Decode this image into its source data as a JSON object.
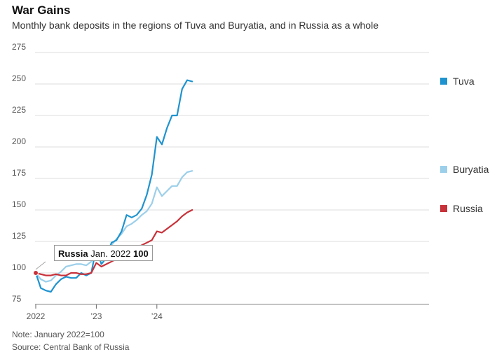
{
  "header": {
    "title": "War Gains",
    "subtitle": "Monthly bank deposits in the regions of Tuva and Buryatia, and in Russia as a whole"
  },
  "footer": {
    "note": "Note: January 2022=100",
    "source": "Source: Central Bank of Russia"
  },
  "tooltip": {
    "series": "Russia",
    "date": "Jan. 2022",
    "value": "100"
  },
  "colors": {
    "tuva": "#1f93cf",
    "buryatia": "#9ccfea",
    "russia": "#c8323a",
    "grid": "#dddddd"
  },
  "chart_data": {
    "type": "line",
    "title": "War Gains",
    "subtitle": "Monthly bank deposits in the regions of Tuva and Buryatia, and in Russia as a whole",
    "x_labels": [
      "2022",
      "’23",
      "’24"
    ],
    "x": [
      "2022-01",
      "2022-02",
      "2022-03",
      "2022-04",
      "2022-05",
      "2022-06",
      "2022-07",
      "2022-08",
      "2022-09",
      "2022-10",
      "2022-11",
      "2022-12",
      "2023-01",
      "2023-02",
      "2023-03",
      "2023-04",
      "2023-05",
      "2023-06",
      "2023-07",
      "2023-08",
      "2023-09",
      "2023-10",
      "2023-11",
      "2023-12",
      "2024-01",
      "2024-02",
      "2024-03",
      "2024-04",
      "2024-05",
      "2024-06",
      "2024-07",
      "2024-08"
    ],
    "yticks": [
      75,
      100,
      125,
      150,
      175,
      200,
      225,
      250,
      275
    ],
    "ylim": [
      75,
      275
    ],
    "grid": true,
    "legend": "right",
    "series": [
      {
        "name": "Tuva",
        "color": "#1f93cf",
        "values": [
          100,
          88,
          86,
          85,
          91,
          95,
          97,
          96,
          96,
          100,
          98,
          100,
          120,
          107,
          112,
          124,
          126,
          133,
          146,
          144,
          146,
          151,
          162,
          178,
          208,
          202,
          215,
          225,
          225,
          246,
          253,
          252
        ]
      },
      {
        "name": "Buryatia",
        "color": "#9ccfea",
        "values": [
          100,
          95,
          93,
          94,
          98,
          101,
          105,
          106,
          107,
          107,
          106,
          109,
          121,
          113,
          119,
          122,
          127,
          131,
          137,
          139,
          142,
          146,
          149,
          155,
          168,
          161,
          165,
          169,
          169,
          176,
          180,
          181
        ]
      },
      {
        "name": "Russia",
        "color": "#c8323a",
        "values": [
          100,
          99,
          98,
          98,
          99,
          98,
          98,
          100,
          100,
          99,
          99,
          100,
          108,
          105,
          107,
          109,
          111,
          112,
          116,
          118,
          120,
          122,
          124,
          126,
          133,
          132,
          135,
          138,
          141,
          145,
          148,
          150
        ]
      }
    ]
  }
}
